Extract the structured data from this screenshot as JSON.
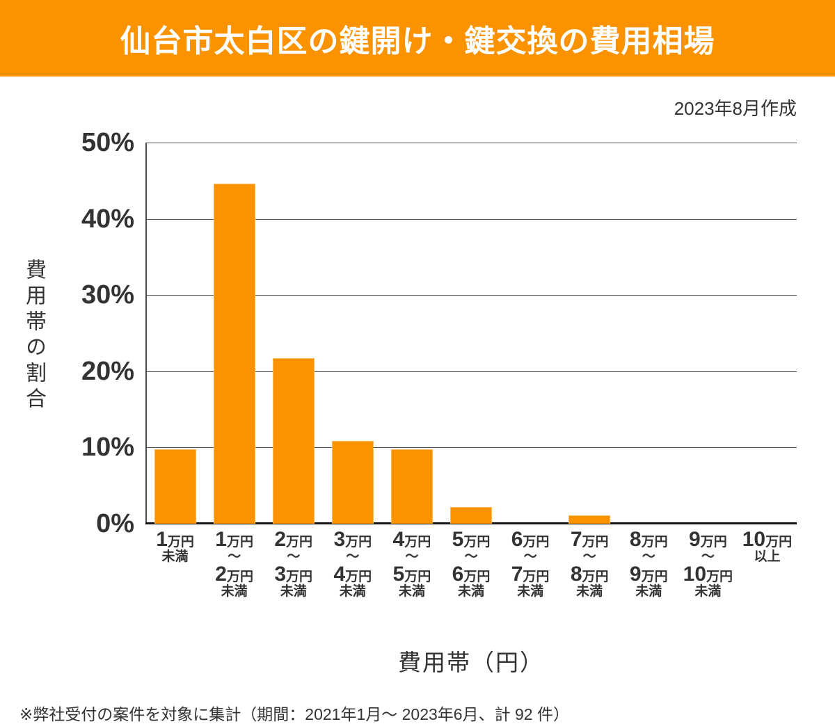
{
  "header": {
    "title": "仙台市太白区の鍵開け・鍵交換の費用相場",
    "bg_color": "#fb9200",
    "text_color": "#ffffff"
  },
  "meta": {
    "created_label": "2023年8月作成"
  },
  "chart_data": {
    "type": "bar",
    "title": "仙台市太白区の鍵開け・鍵交換の費用相場",
    "xlabel": "費用帯（円）",
    "ylabel": "費用帯の割合",
    "ylim": [
      0,
      50
    ],
    "grid": true,
    "legend": false,
    "bar_color": "#fb9200",
    "yticks": [
      "50%",
      "40%",
      "30%",
      "20%",
      "10%",
      "0%"
    ],
    "categories": [
      "1万円未満",
      "1万円〜2万円未満",
      "2万円〜3万円未満",
      "3万円〜4万円未満",
      "4万円〜5万円未満",
      "5万円〜6万円未満",
      "6万円〜7万円未満",
      "7万円〜8万円未満",
      "8万円〜9万円未満",
      "9万円〜10万円未満",
      "10万円以上"
    ],
    "category_lines": [
      [
        "1万円",
        "未満"
      ],
      [
        "1万円",
        "〜",
        "2万円",
        "未満"
      ],
      [
        "2万円",
        "〜",
        "3万円",
        "未満"
      ],
      [
        "3万円",
        "〜",
        "4万円",
        "未満"
      ],
      [
        "4万円",
        "〜",
        "5万円",
        "未満"
      ],
      [
        "5万円",
        "〜",
        "6万円",
        "未満"
      ],
      [
        "6万円",
        "〜",
        "7万円",
        "未満"
      ],
      [
        "7万円",
        "〜",
        "8万円",
        "未満"
      ],
      [
        "8万円",
        "〜",
        "9万円",
        "未満"
      ],
      [
        "9万円",
        "〜",
        "10万円",
        "未満"
      ],
      [
        "10万円",
        "以上"
      ]
    ],
    "values": [
      9.8,
      44.6,
      21.7,
      10.9,
      9.8,
      2.2,
      0,
      1.1,
      0,
      0,
      0
    ]
  },
  "footer": {
    "note": "※弊社受付の案件を対象に集計（期間：2021年1月～ 2023年6月、計 92 件）"
  }
}
